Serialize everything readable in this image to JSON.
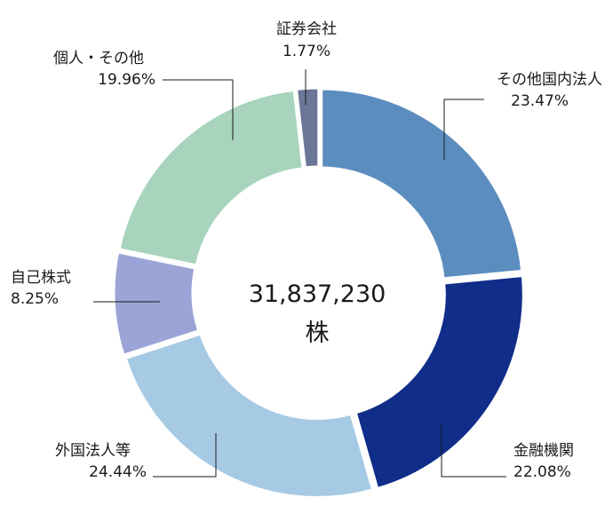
{
  "chart_data": {
    "type": "pie",
    "variant": "donut",
    "center_total": "31,837,230",
    "center_unit": "株",
    "slices": [
      {
        "name": "その他国内法人",
        "value": 23.47,
        "label": "23.47%",
        "color": "#5b8dbf"
      },
      {
        "name": "金融機関",
        "value": 22.08,
        "label": "22.08%",
        "color": "#0f2d89"
      },
      {
        "name": "外国法人等",
        "value": 24.44,
        "label": "24.44%",
        "color": "#a7cae4"
      },
      {
        "name": "自己株式",
        "value": 8.25,
        "label": "8.25%",
        "color": "#9aa4d6"
      },
      {
        "name": "個人・その他",
        "value": 19.96,
        "label": "19.96%",
        "color": "#a8d4bd"
      },
      {
        "name": "証券会社",
        "value": 1.77,
        "label": "1.77%",
        "color": "#6c7697"
      }
    ],
    "start_angle_deg": 0,
    "direction": "clockwise",
    "legend": "none"
  }
}
